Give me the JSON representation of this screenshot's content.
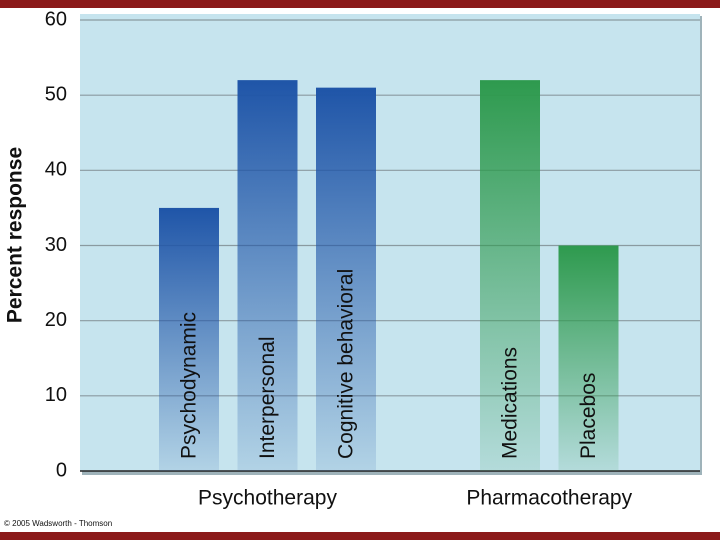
{
  "chart_data": {
    "type": "bar",
    "y_label": "Percent response",
    "ylim": [
      0,
      60
    ],
    "yticks": [
      0,
      10,
      20,
      30,
      40,
      50,
      60
    ],
    "grid": true,
    "series": [
      {
        "name": "Psychotherapy",
        "color": "#1f55a8",
        "categories": [
          "Psychodynamic",
          "Interpersonal",
          "Cognitive behavioral"
        ],
        "values": [
          35,
          52,
          51
        ]
      },
      {
        "name": "Pharmacotherapy",
        "color": "#2e9a4e",
        "categories": [
          "Medications",
          "Placebos"
        ],
        "values": [
          52,
          30
        ]
      }
    ],
    "copyright": "© 2005 Wadsworth - Thomson"
  }
}
